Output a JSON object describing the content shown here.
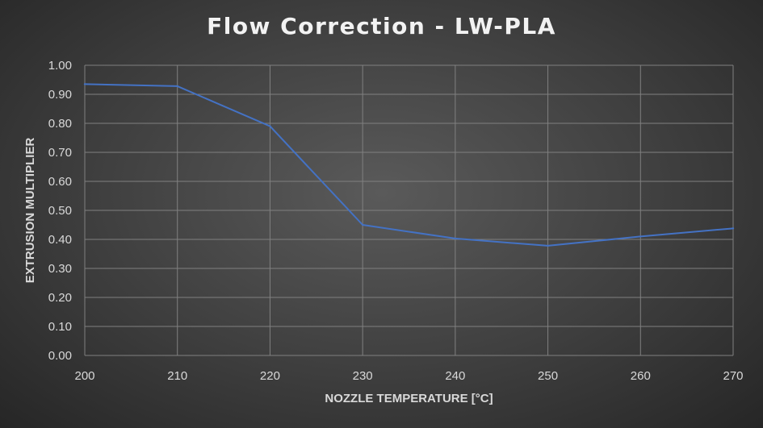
{
  "chart_data": {
    "type": "line",
    "title": "Flow Correction - LW-PLA",
    "xlabel": "NOZZLE TEMPERATURE [°C]",
    "ylabel": "EXTRUSION MULTIPLIER",
    "x": [
      200,
      210,
      220,
      230,
      240,
      250,
      260,
      270
    ],
    "series": [
      {
        "values": [
          0.935,
          0.928,
          0.79,
          0.45,
          0.403,
          0.378,
          0.41,
          0.438
        ]
      }
    ],
    "xlim": [
      200,
      270
    ],
    "ylim": [
      0,
      1
    ],
    "x_ticks": [
      "200",
      "210",
      "220",
      "230",
      "240",
      "250",
      "260",
      "270"
    ],
    "y_ticks": [
      "0.00",
      "0.10",
      "0.20",
      "0.30",
      "0.40",
      "0.50",
      "0.60",
      "0.70",
      "0.80",
      "0.90",
      "1.00"
    ],
    "grid": true,
    "legend": "none",
    "colors": {
      "line": "#4472c4",
      "grid": "#808080",
      "text": "#d9d9d9",
      "title": "#f2f2f2"
    }
  }
}
